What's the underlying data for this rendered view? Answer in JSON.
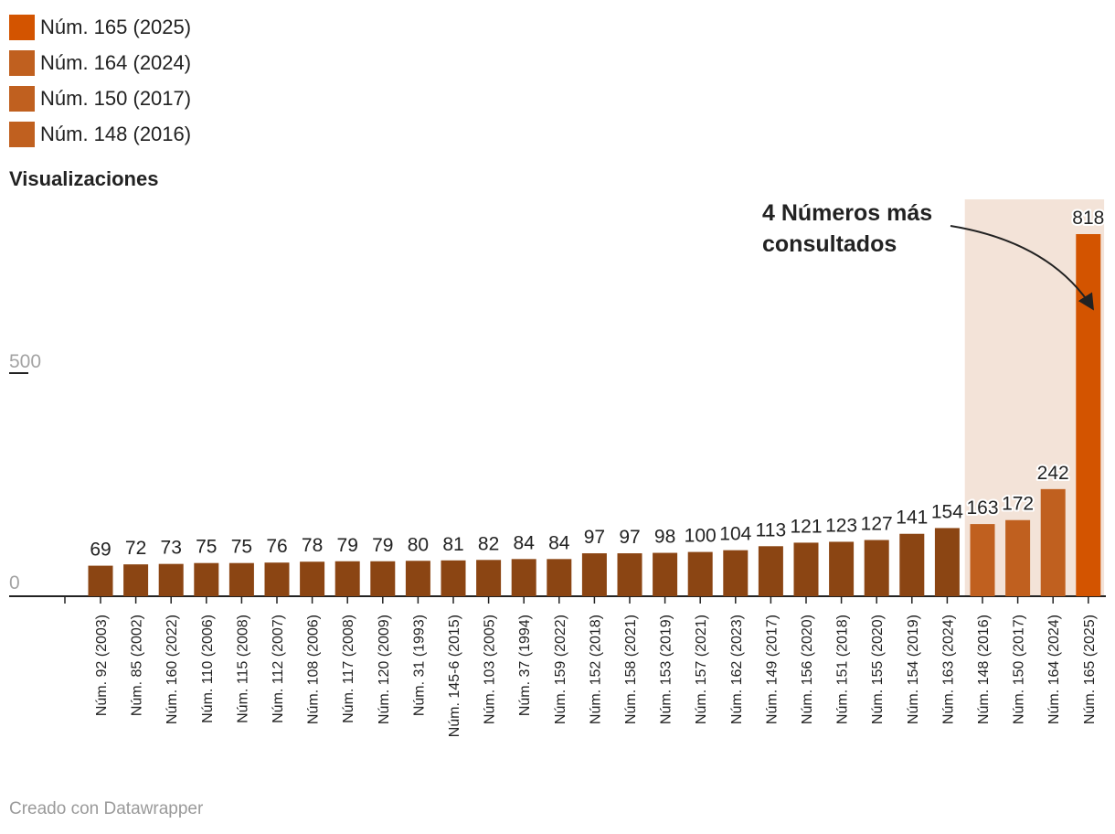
{
  "legend": [
    {
      "label": "Núm. 165 (2025)",
      "color": "#d35400"
    },
    {
      "label": "Núm. 164 (2024)",
      "color": "#c0601f"
    },
    {
      "label": "Núm. 150 (2017)",
      "color": "#c0601f"
    },
    {
      "label": "Núm. 148 (2016)",
      "color": "#c0601f"
    }
  ],
  "footer": "Creado con Datawrapper",
  "colors": {
    "default_bar": "#8b4513",
    "highlight_bar": "#c0601f",
    "top_bar": "#d35400",
    "highlight_band": "#f3e3d8"
  },
  "chart_data": {
    "type": "bar",
    "ylabel": "Visualizaciones",
    "ylim": [
      0,
      900
    ],
    "yticks": [
      "0",
      "500"
    ],
    "categories": [
      "Núm. 92 (2003)",
      "Núm. 85 (2002)",
      "Núm. 160 (2022)",
      "Núm. 110 (2006)",
      "Núm. 115 (2008)",
      "Núm. 112 (2007)",
      "Núm. 108 (2006)",
      "Núm. 117 (2008)",
      "Núm. 120 (2009)",
      "Núm. 31 (1993)",
      "Núm. 145-6 (2015)",
      "Núm. 103 (2005)",
      "Núm. 37 (1994)",
      "Núm. 159 (2022)",
      "Núm. 152 (2018)",
      "Núm. 158 (2021)",
      "Núm. 153 (2019)",
      "Núm. 157 (2021)",
      "Núm. 162 (2023)",
      "Núm. 149 (2017)",
      "Núm. 156 (2020)",
      "Núm. 151 (2018)",
      "Núm. 155 (2020)",
      "Núm. 154 (2019)",
      "Núm. 163 (2024)",
      "Núm. 148 (2016)",
      "Núm. 150 (2017)",
      "Núm. 164 (2024)",
      "Núm. 165 (2025)"
    ],
    "values": [
      69,
      72,
      73,
      75,
      75,
      76,
      78,
      79,
      79,
      80,
      81,
      82,
      84,
      84,
      97,
      97,
      98,
      100,
      104,
      113,
      121,
      123,
      127,
      141,
      154,
      163,
      172,
      242,
      818
    ],
    "annotation": {
      "line1": "4 Números más",
      "line2": "consultados"
    },
    "grid": false
  }
}
